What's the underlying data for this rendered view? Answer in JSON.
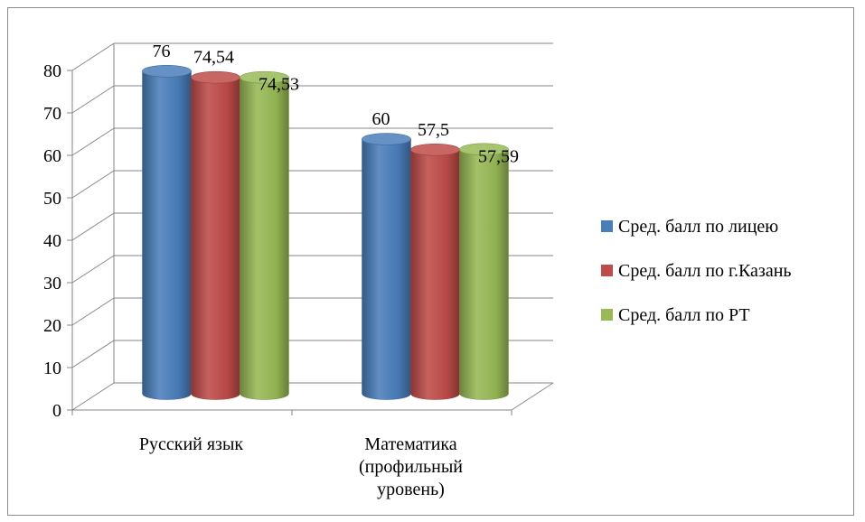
{
  "chart_data": {
    "type": "bar",
    "style": "3d-cylinder",
    "categories": [
      "Русский язык",
      "Математика (профильный уровень)"
    ],
    "category_lines": [
      [
        "Русский язык"
      ],
      [
        "Математика",
        "(профильный",
        "уровень)"
      ]
    ],
    "series": [
      {
        "name": "Сред. балл по лицею",
        "values": [
          76,
          60
        ],
        "labels": [
          "76",
          "60"
        ],
        "color": "#4a7ebb"
      },
      {
        "name": "Сред. балл по г.Казань",
        "values": [
          74.54,
          57.5
        ],
        "labels": [
          "74,54",
          "57,5"
        ],
        "color": "#be4b48"
      },
      {
        "name": "Сред. балл по РТ",
        "values": [
          74.53,
          57.59
        ],
        "labels": [
          "74,53",
          "57,59"
        ],
        "color": "#98b954"
      }
    ],
    "ylim": [
      0,
      80
    ],
    "yticks": [
      0,
      10,
      20,
      30,
      40,
      50,
      60,
      70,
      80
    ],
    "grid": true,
    "legend_position": "right",
    "title": "",
    "xlabel": "",
    "ylabel": ""
  }
}
